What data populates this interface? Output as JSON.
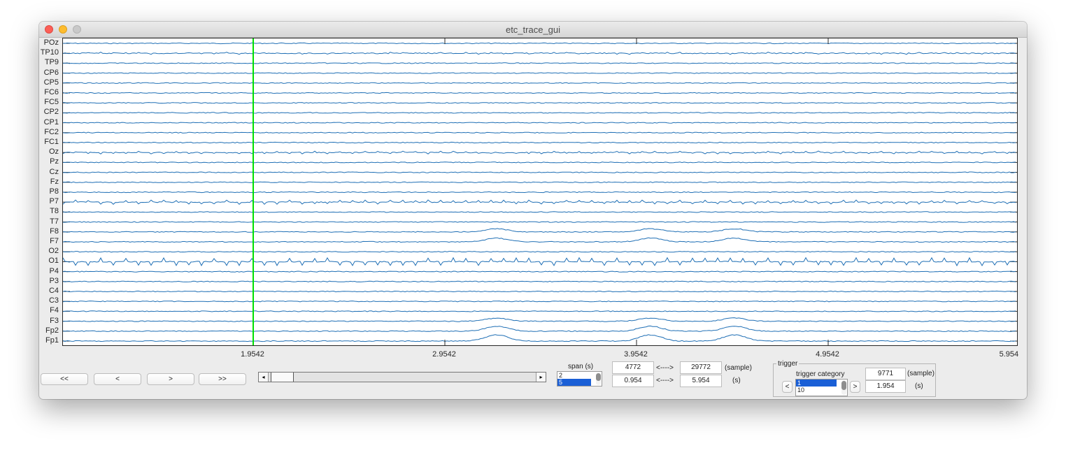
{
  "window": {
    "title": "etc_trace_gui"
  },
  "channels": [
    "POz",
    "TP10",
    "TP9",
    "CP6",
    "CP5",
    "FC6",
    "FC5",
    "CP2",
    "CP1",
    "FC2",
    "FC1",
    "Oz",
    "Pz",
    "Cz",
    "Fz",
    "P8",
    "P7",
    "T8",
    "T7",
    "F8",
    "F7",
    "O2",
    "O1",
    "P4",
    "P3",
    "C4",
    "C3",
    "F4",
    "F3",
    "Fp2",
    "Fp1"
  ],
  "x_ticks": [
    "1.9542",
    "2.9542",
    "3.9542",
    "4.9542",
    "5.954"
  ],
  "cursor_time": "1.9542",
  "colors": {
    "trace": "#1f6fb5",
    "cursor": "#00e000",
    "axis": "#262626"
  },
  "nav": {
    "first": "<<",
    "prev": "<",
    "next": ">",
    "last": ">>"
  },
  "slider": {
    "left_arrow": "◂",
    "right_arrow": "▸",
    "position": 0.04
  },
  "span": {
    "label": "span (s)",
    "options": [
      "2",
      "5"
    ],
    "selected": "5"
  },
  "range": {
    "start_sample": "4772",
    "arrow1": "<---->",
    "end_sample": "29772",
    "sample_unit": "(sample)",
    "start_s": "0.954",
    "arrow2": "<---->",
    "end_s": "5.954",
    "s_unit": "(s)"
  },
  "trigger": {
    "group_label": "trigger",
    "category_label": "trigger category",
    "prev": "<",
    "next": ">",
    "options": [
      "1",
      "10"
    ],
    "selected": "1",
    "sample": "9771",
    "sample_unit": "(sample)",
    "time": "1.954",
    "time_unit": "(s)"
  }
}
